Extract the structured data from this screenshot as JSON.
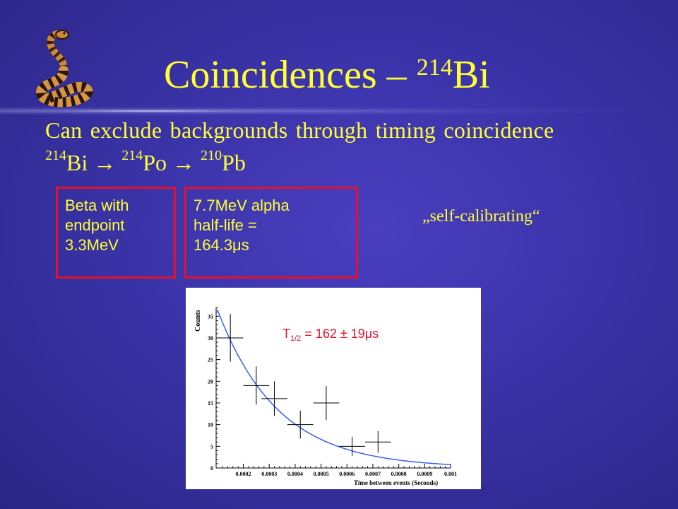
{
  "slide": {
    "title_main": "Coincidences –",
    "title_sup": "214",
    "title_element": "Bi",
    "subtitle": "Can exclude backgrounds through timing coincidence",
    "decay": {
      "iso1": "214",
      "el1": "Bi",
      "arrow": "→",
      "iso2": "214",
      "el2": "Po",
      "iso3": "210",
      "el3": "Pb"
    },
    "box1": {
      "line1": "Beta with",
      "line2": "endpoint",
      "line3": "3.3MeV"
    },
    "box2": {
      "line1": "7.7MeV alpha",
      "line2": "half-life =",
      "line3": "164.3μs"
    },
    "self_calibrating": "„self-calibrating“",
    "colors": {
      "text": "#ffff33",
      "box_border": "#e3112a",
      "fit_curve": "#3a5cff",
      "annotation": "#e3112a"
    },
    "icon": "cobra-icon"
  },
  "chart_data": {
    "type": "scatter",
    "ylabel": "Counts",
    "xlabel": "Time between events (Seconds)",
    "xlim": [
      0.0001,
      0.001
    ],
    "ylim": [
      0,
      37
    ],
    "x_ticks": [
      "0.0002",
      "0.0003",
      "0.0004",
      "0.0005",
      "0.0006",
      "0.0007",
      "0.0008",
      "0.0009",
      "0.001"
    ],
    "y_ticks": [
      "0",
      "5",
      "10",
      "15",
      "20",
      "25",
      "30",
      "35"
    ],
    "annotation": {
      "main": "T",
      "sub": "1/2",
      "rest": " = 162 ± 19μs"
    },
    "series": [
      {
        "x": [
          0.00015,
          0.00025,
          0.00032,
          0.00042,
          0.00052,
          0.00062,
          0.00072
        ],
        "y": [
          30,
          19,
          16,
          10,
          15,
          5,
          6
        ],
        "yerr": [
          5.5,
          4.4,
          4,
          3.2,
          3.9,
          2.2,
          2.5
        ],
        "xerr": [
          5e-05,
          5e-05,
          5e-05,
          5e-05,
          5e-05,
          5e-05,
          5e-05
        ]
      }
    ],
    "fit": {
      "type": "exponential",
      "amplitude": 36.5,
      "x0": 0.0001,
      "half_life": 0.000162
    }
  }
}
